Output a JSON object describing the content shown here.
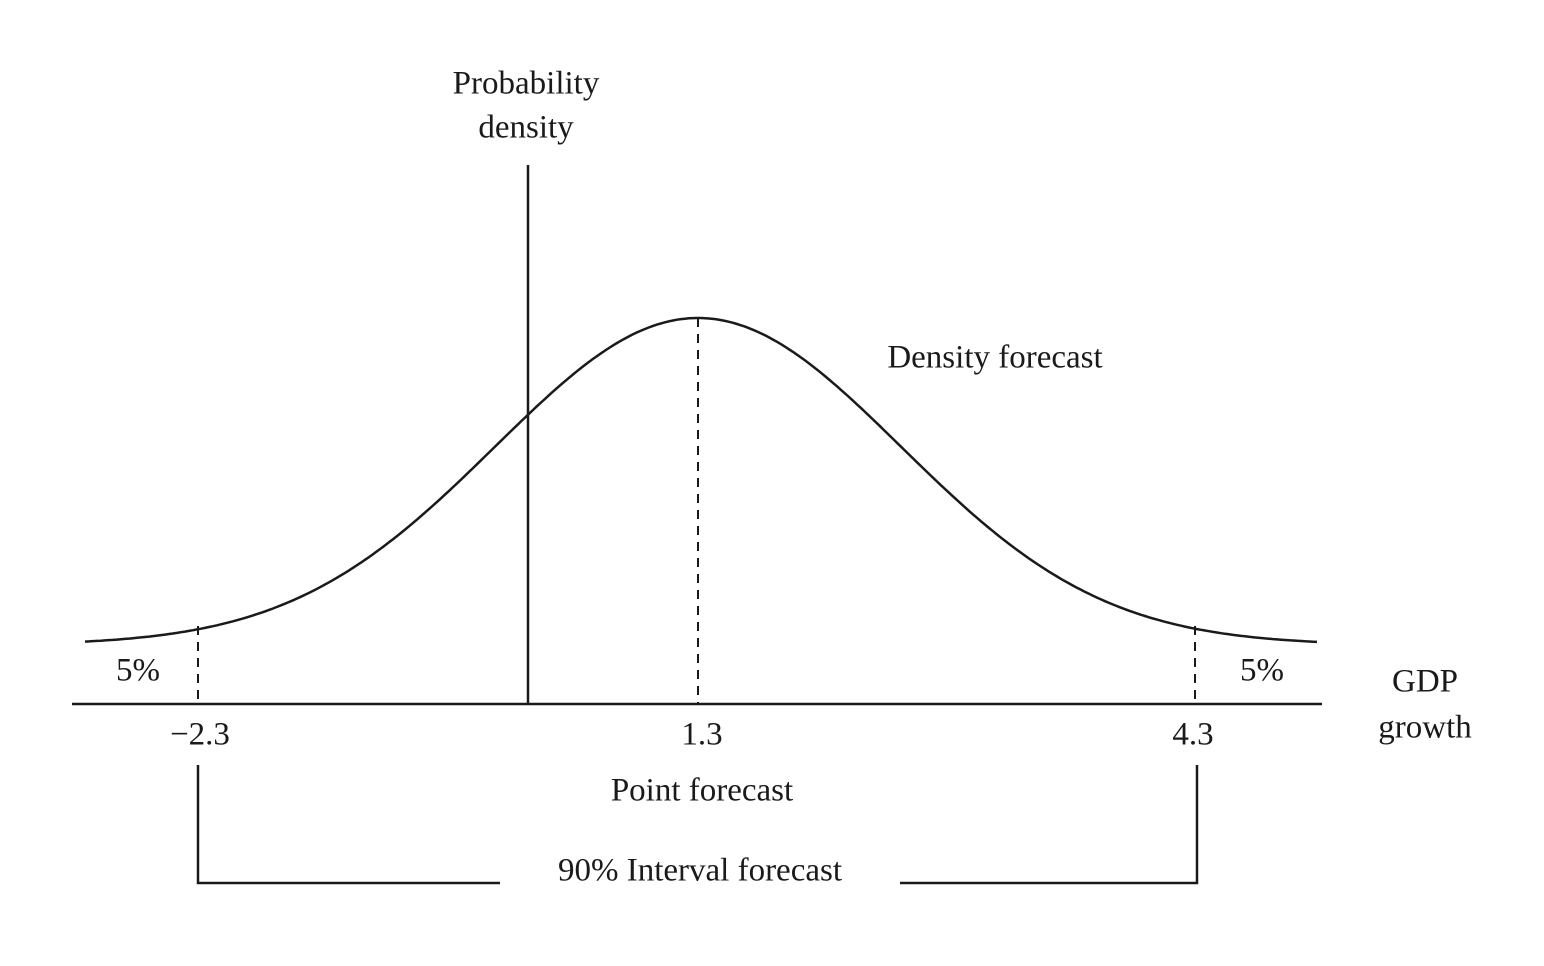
{
  "axis": {
    "y_label": [
      "Probability",
      "density"
    ],
    "x_label": [
      "GDP",
      "growth"
    ]
  },
  "curve_label": "Density forecast",
  "tails": [
    "5%",
    "5%"
  ],
  "ticks": [
    "−2.3",
    "1.3",
    "4.3"
  ],
  "point_forecast_label": "Point forecast",
  "interval_label": "90% Interval forecast"
}
